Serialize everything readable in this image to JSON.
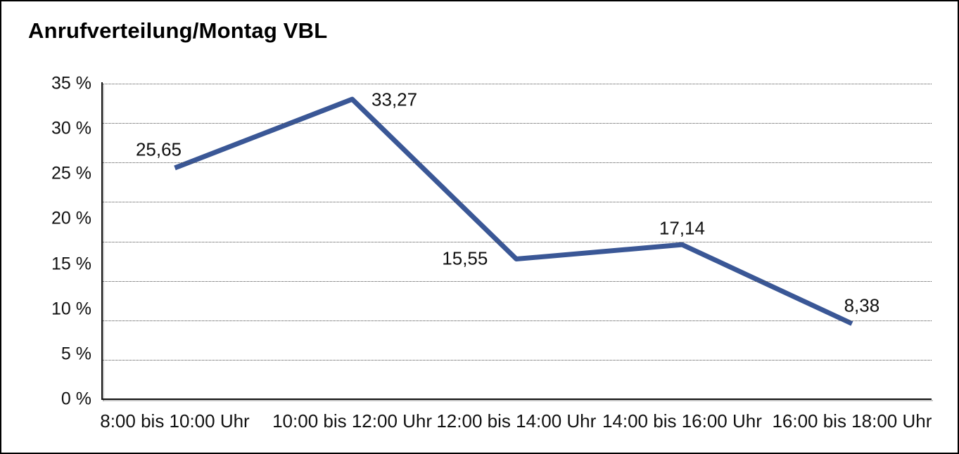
{
  "title": "Anrufverteilung/Montag VBL",
  "chart_data": {
    "type": "line",
    "title": "Anrufverteilung/Montag VBL",
    "categories": [
      "8:00 bis 10:00 Uhr",
      "10:00 bis 12:00 Uhr",
      "12:00 bis 14:00 Uhr",
      "14:00 bis 16:00 Uhr",
      "16:00 bis 18:00 Uhr"
    ],
    "values": [
      25.65,
      33.27,
      15.55,
      17.14,
      8.38
    ],
    "point_labels": [
      "25,65",
      "33,27",
      "15,55",
      "17,14",
      "8,38"
    ],
    "y_tick_labels": [
      "35 %",
      "30 %",
      "25 %",
      "20 %",
      "15 %",
      "10 %",
      "5 %",
      "0 %"
    ],
    "ylim": [
      0,
      35
    ],
    "y_label_step_percent": 5,
    "grid_horizontal_divisions": 8,
    "grid_style": "dotted",
    "legend": "none",
    "xlabel": "",
    "ylabel": "",
    "line_color": "#3A5796",
    "axis_color": "#111111",
    "background_color": "#FFFFFF",
    "text_color": "#111111"
  }
}
